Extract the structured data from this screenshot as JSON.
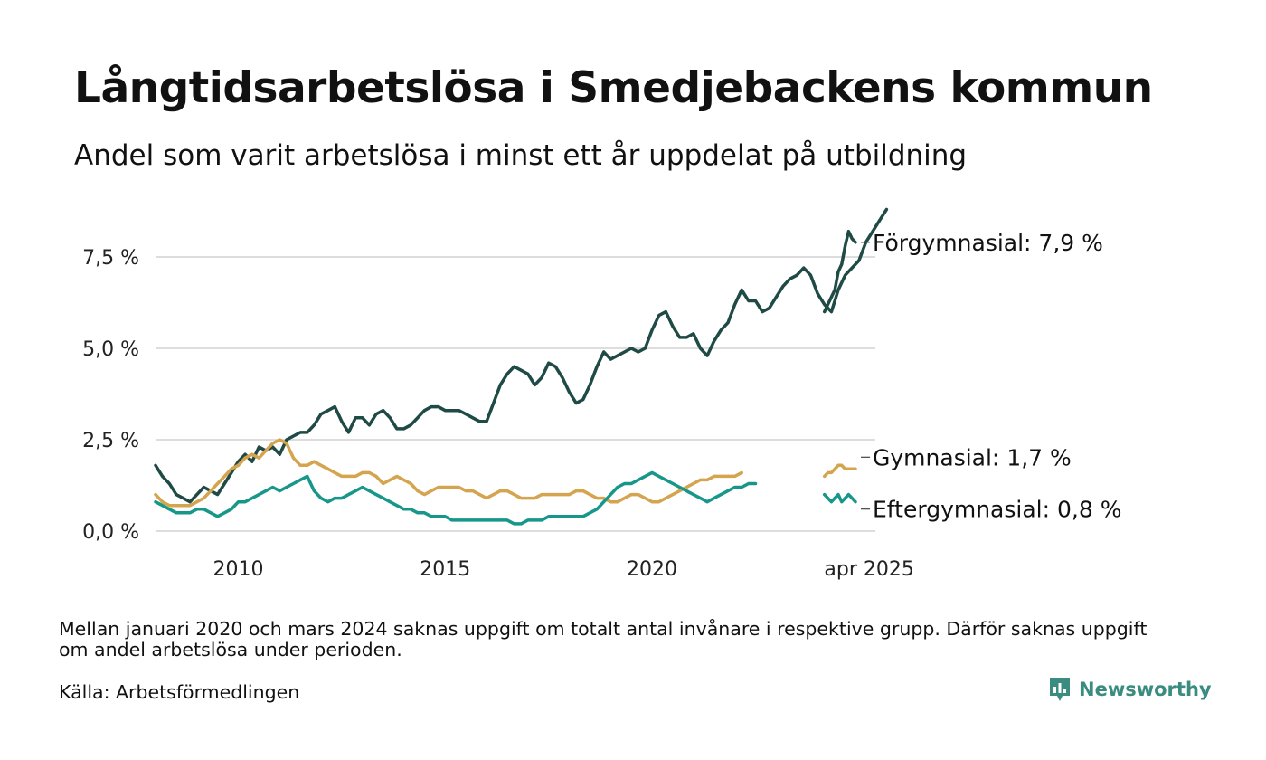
{
  "title": "Långtidsarbetslösa i Smedjebackens kommun",
  "subtitle": "Andel som varit arbetslösa i minst ett år uppdelat på utbildning",
  "note": "Mellan januari 2020 och mars 2024 saknas uppgift om totalt antal invånare i respektive grupp. Därför saknas uppgift om andel arbetslösa under perioden.",
  "source": "Källa: Arbetsförmedlingen",
  "brand": "Newsworthy",
  "colors": {
    "forgymnasial": "#1f4a45",
    "gymnasial": "#d4a44e",
    "eftergymnasial": "#17978a",
    "grid": "#dddddd",
    "brand": "#3a8c80"
  },
  "chart_data": {
    "type": "line",
    "y_tick_labels": [
      "0,0 %",
      "2,5 %",
      "5,0 %",
      "7,5 %"
    ],
    "y_ticks": [
      0,
      2.5,
      5,
      7.5
    ],
    "ylim": [
      0,
      8.8
    ],
    "x_tick_labels": [
      "2010",
      "2015",
      "2020",
      "apr 2025"
    ],
    "x_ticks": [
      2010,
      2015,
      2020,
      2025.25
    ],
    "xlim": [
      2008.0,
      2025.4
    ],
    "grid": "horizontal",
    "series": [
      {
        "name": "Förgymnasial",
        "end_label": "Förgymnasial: 7,9 %",
        "color_key": "forgymnasial",
        "segments": [
          {
            "start": 2008.0,
            "step": 0.1667,
            "values": [
              1.8,
              1.5,
              1.3,
              1.0,
              0.9,
              0.8,
              1.0,
              1.2,
              1.1,
              1.0,
              1.3,
              1.6,
              1.9,
              2.1,
              1.9,
              2.3,
              2.2,
              2.3,
              2.1,
              2.5,
              2.6,
              2.7,
              2.7,
              2.9,
              3.2,
              3.3,
              3.4,
              3.0,
              2.7,
              3.1,
              3.1,
              2.9,
              3.2,
              3.3,
              3.1,
              2.8,
              2.8,
              2.9,
              3.1,
              3.3,
              3.4,
              3.4,
              3.3,
              3.3,
              3.3,
              3.2,
              3.1,
              3.0,
              3.0,
              3.5,
              4.0,
              4.3,
              4.5,
              4.4,
              4.3,
              4.0,
              4.2,
              4.6,
              4.5,
              4.2,
              3.8,
              3.5,
              3.6,
              4.0,
              4.5,
              4.9,
              4.7,
              4.8,
              4.9,
              5.0,
              4.9,
              5.0,
              5.5,
              5.9,
              6.0,
              5.6,
              5.3,
              5.3,
              5.4,
              5.0,
              4.8,
              5.2,
              5.5,
              5.7,
              6.2,
              6.6,
              6.3,
              6.3,
              6.0,
              6.1,
              6.4,
              6.7,
              6.9,
              7.0,
              7.2,
              7.0,
              6.5,
              6.2,
              6.0,
              6.6,
              7.0,
              7.2,
              7.4,
              7.9,
              8.2,
              8.5,
              8.8
            ]
          },
          {
            "start": 2024.17,
            "step": 0.0833,
            "values": [
              6.0,
              6.2,
              6.4,
              6.6,
              7.1,
              7.3,
              7.8,
              8.2,
              8.0,
              7.9
            ]
          }
        ]
      },
      {
        "name": "Gymnasial",
        "end_label": "Gymnasial: 1,7 %",
        "color_key": "gymnasial",
        "segments": [
          {
            "start": 2008.0,
            "step": 0.1667,
            "values": [
              1.0,
              0.8,
              0.7,
              0.7,
              0.7,
              0.7,
              0.8,
              0.9,
              1.1,
              1.3,
              1.5,
              1.7,
              1.8,
              2.0,
              2.1,
              2.0,
              2.2,
              2.4,
              2.5,
              2.4,
              2.0,
              1.8,
              1.8,
              1.9,
              1.8,
              1.7,
              1.6,
              1.5,
              1.5,
              1.5,
              1.6,
              1.6,
              1.5,
              1.3,
              1.4,
              1.5,
              1.4,
              1.3,
              1.1,
              1.0,
              1.1,
              1.2,
              1.2,
              1.2,
              1.2,
              1.1,
              1.1,
              1.0,
              0.9,
              1.0,
              1.1,
              1.1,
              1.0,
              0.9,
              0.9,
              0.9,
              1.0,
              1.0,
              1.0,
              1.0,
              1.0,
              1.1,
              1.1,
              1.0,
              0.9,
              0.9,
              0.8,
              0.8,
              0.9,
              1.0,
              1.0,
              0.9,
              0.8,
              0.8,
              0.9,
              1.0,
              1.1,
              1.2,
              1.3,
              1.4,
              1.4,
              1.5,
              1.5,
              1.5,
              1.5,
              1.6
            ]
          },
          {
            "start": 2024.17,
            "step": 0.0833,
            "values": [
              1.5,
              1.6,
              1.6,
              1.7,
              1.8,
              1.8,
              1.7,
              1.7,
              1.7,
              1.7
            ]
          }
        ]
      },
      {
        "name": "Eftergymnasial",
        "end_label": "Eftergymnasial: 0,8 %",
        "color_key": "eftergymnasial",
        "segments": [
          {
            "start": 2008.0,
            "step": 0.1667,
            "values": [
              0.8,
              0.7,
              0.6,
              0.5,
              0.5,
              0.5,
              0.6,
              0.6,
              0.5,
              0.4,
              0.5,
              0.6,
              0.8,
              0.8,
              0.9,
              1.0,
              1.1,
              1.2,
              1.1,
              1.2,
              1.3,
              1.4,
              1.5,
              1.1,
              0.9,
              0.8,
              0.9,
              0.9,
              1.0,
              1.1,
              1.2,
              1.1,
              1.0,
              0.9,
              0.8,
              0.7,
              0.6,
              0.6,
              0.5,
              0.5,
              0.4,
              0.4,
              0.4,
              0.3,
              0.3,
              0.3,
              0.3,
              0.3,
              0.3,
              0.3,
              0.3,
              0.3,
              0.2,
              0.2,
              0.3,
              0.3,
              0.3,
              0.4,
              0.4,
              0.4,
              0.4,
              0.4,
              0.4,
              0.5,
              0.6,
              0.8,
              1.0,
              1.2,
              1.3,
              1.3,
              1.4,
              1.5,
              1.6,
              1.5,
              1.4,
              1.3,
              1.2,
              1.1,
              1.0,
              0.9,
              0.8,
              0.9,
              1.0,
              1.1,
              1.2,
              1.2,
              1.3,
              1.3
            ]
          },
          {
            "start": 2024.17,
            "step": 0.0833,
            "values": [
              1.0,
              0.9,
              0.8,
              0.9,
              1.0,
              0.8,
              0.9,
              1.0,
              0.9,
              0.8
            ]
          }
        ]
      }
    ]
  }
}
